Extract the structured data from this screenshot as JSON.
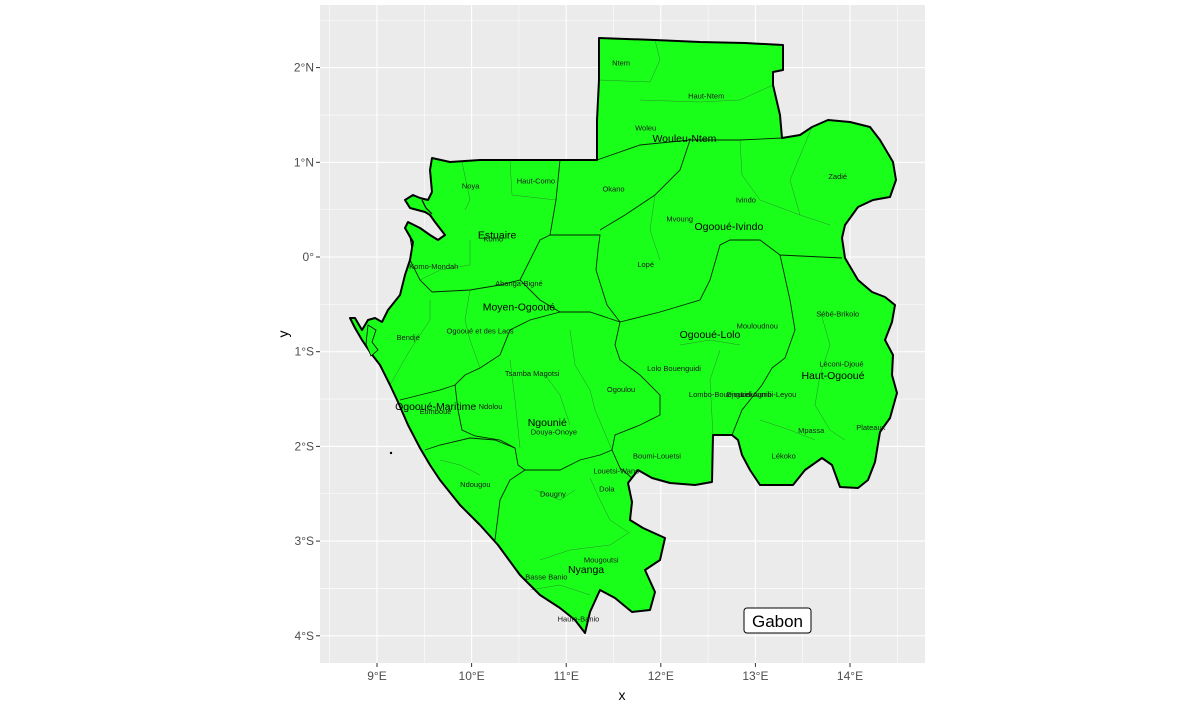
{
  "map": {
    "country_label": "Gabon",
    "x_axis_title": "x",
    "y_axis_title": "y",
    "x_ticks": [
      {
        "value": 9,
        "label": "9°E"
      },
      {
        "value": 10,
        "label": "10°E"
      },
      {
        "value": 11,
        "label": "11°E"
      },
      {
        "value": 12,
        "label": "12°E"
      },
      {
        "value": 13,
        "label": "13°E"
      },
      {
        "value": 14,
        "label": "14°E"
      }
    ],
    "y_ticks": [
      {
        "value": 2,
        "label": "2°N"
      },
      {
        "value": 1,
        "label": "1°N"
      },
      {
        "value": 0,
        "label": "0°"
      },
      {
        "value": -1,
        "label": "1°S"
      },
      {
        "value": -2,
        "label": "2°S"
      },
      {
        "value": -3,
        "label": "3°S"
      },
      {
        "value": -4,
        "label": "4°S"
      }
    ],
    "colors": {
      "panel_background": "#ebebeb",
      "grid_line": "#ffffff",
      "land_fill": "#1aff1a",
      "border": "#000000"
    },
    "provinces": [
      {
        "name": "Wouleu-Ntem",
        "lon": 12.25,
        "lat": 1.25
      },
      {
        "name": "Estuaire",
        "lon": 10.27,
        "lat": 0.23
      },
      {
        "name": "Moyen-Ogooué",
        "lon": 10.5,
        "lat": -0.53
      },
      {
        "name": "Ogooué-Ivindo",
        "lon": 12.72,
        "lat": 0.32
      },
      {
        "name": "Ogooué-Lolo",
        "lon": 12.52,
        "lat": -0.82
      },
      {
        "name": "Haut-Ogooué",
        "lon": 13.82,
        "lat": -1.25
      },
      {
        "name": "Ogooué-Maritime",
        "lon": 9.62,
        "lat": -1.58
      },
      {
        "name": "Ngounié",
        "lon": 10.8,
        "lat": -1.75
      },
      {
        "name": "Nyanga",
        "lon": 11.21,
        "lat": -3.3
      }
    ],
    "departments": [
      {
        "name": "Ntem",
        "lon": 11.58,
        "lat": 2.05
      },
      {
        "name": "Haut-Ntem",
        "lon": 12.48,
        "lat": 1.7
      },
      {
        "name": "Woleu",
        "lon": 11.84,
        "lat": 1.36
      },
      {
        "name": "Noya",
        "lon": 9.99,
        "lat": 0.75
      },
      {
        "name": "Haut-Como",
        "lon": 10.68,
        "lat": 0.8
      },
      {
        "name": "Okano",
        "lon": 11.5,
        "lat": 0.72
      },
      {
        "name": "Zadié",
        "lon": 13.87,
        "lat": 0.85
      },
      {
        "name": "Ivindo",
        "lon": 12.9,
        "lat": 0.6
      },
      {
        "name": "Mvoung",
        "lon": 12.2,
        "lat": 0.4
      },
      {
        "name": "Komo",
        "lon": 10.23,
        "lat": 0.19
      },
      {
        "name": "Komo-Mondah",
        "lon": 9.6,
        "lat": -0.1
      },
      {
        "name": "Lopé",
        "lon": 11.84,
        "lat": -0.08
      },
      {
        "name": "Abanga-Bigné",
        "lon": 10.5,
        "lat": -0.28
      },
      {
        "name": "Sébé-Brikolo",
        "lon": 13.87,
        "lat": -0.6
      },
      {
        "name": "Mouloudnou",
        "lon": 13.02,
        "lat": -0.73
      },
      {
        "name": "Bendjé",
        "lon": 9.33,
        "lat": -0.85
      },
      {
        "name": "Ogooué et des Lacs",
        "lon": 10.09,
        "lat": -0.78
      },
      {
        "name": "Léconi-Djoué",
        "lon": 13.91,
        "lat": -1.13
      },
      {
        "name": "Lolo Bouenguidi",
        "lon": 12.14,
        "lat": -1.18
      },
      {
        "name": "Tsamba Magotsi",
        "lon": 10.64,
        "lat": -1.23
      },
      {
        "name": "Ogoulou",
        "lon": 11.58,
        "lat": -1.4
      },
      {
        "name": "Lombo-Bouenguidi",
        "lon": 12.63,
        "lat": -1.45
      },
      {
        "name": "Djouori-Agnili",
        "lon": 12.93,
        "lat": -1.45
      },
      {
        "name": "Lekoumbi-Leyou",
        "lon": 13.14,
        "lat": -1.45
      },
      {
        "name": "Ndolou",
        "lon": 10.2,
        "lat": -1.58
      },
      {
        "name": "Etimboué",
        "lon": 9.62,
        "lat": -1.63
      },
      {
        "name": "Douya-Onoye",
        "lon": 10.87,
        "lat": -1.85
      },
      {
        "name": "Mpassa",
        "lon": 13.59,
        "lat": -1.83
      },
      {
        "name": "Plateaux",
        "lon": 14.22,
        "lat": -1.8
      },
      {
        "name": "Boumi-Louetsi",
        "lon": 11.96,
        "lat": -2.1
      },
      {
        "name": "Lékoko",
        "lon": 13.3,
        "lat": -2.1
      },
      {
        "name": "Louetsi-Wano",
        "lon": 11.53,
        "lat": -2.26
      },
      {
        "name": "Ndougou",
        "lon": 10.04,
        "lat": -2.4
      },
      {
        "name": "Dola",
        "lon": 11.43,
        "lat": -2.45
      },
      {
        "name": "Dougny",
        "lon": 10.86,
        "lat": -2.5
      },
      {
        "name": "Mougoutsi",
        "lon": 11.37,
        "lat": -3.2
      },
      {
        "name": "Basse Banio",
        "lon": 10.79,
        "lat": -3.38
      },
      {
        "name": "Haute-Banio",
        "lon": 11.13,
        "lat": -3.82
      }
    ]
  }
}
